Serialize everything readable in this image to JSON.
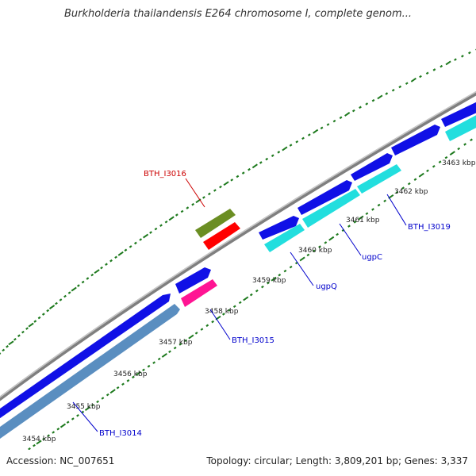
{
  "title": "Burkholderia thailandensis E264 chromosome I, complete genom...",
  "footer": {
    "accession": "Accession: NC_007651",
    "info": "Topology: circular; Length: 3,809,201 bp; Genes: 3,337"
  },
  "colors": {
    "backbone": "#888888",
    "ticks": "#1e7a1e",
    "cds_forward": "#1010e6",
    "cds_reverse_a": "#22dede",
    "cds_reverse_b": "#5a8ec0",
    "gene_olive": "#6b8e23",
    "gene_red": "#ff0000",
    "gene_magenta": "#ff1493",
    "label_blue": "#0000cc",
    "label_red": "#cc0000"
  },
  "scale": {
    "unit": "kbp",
    "ticks": [
      {
        "value": 3454,
        "label": "3454 kbp"
      },
      {
        "value": 3455,
        "label": "3455 kbp"
      },
      {
        "value": 3456,
        "label": "3456 kbp"
      },
      {
        "value": 3457,
        "label": "3457 kbp"
      },
      {
        "value": 3458,
        "label": "3458 kbp"
      },
      {
        "value": 3459,
        "label": "3459 kbp"
      },
      {
        "value": 3460,
        "label": "3460 kbp"
      },
      {
        "value": 3461,
        "label": "3461 kbp"
      },
      {
        "value": 3462,
        "label": "3462 kbp"
      },
      {
        "value": 3463,
        "label": "3463 kbp"
      }
    ]
  },
  "genes": [
    {
      "name": "BTH_I3014",
      "label_color": "blue"
    },
    {
      "name": "BTH_I3015",
      "label_color": "blue"
    },
    {
      "name": "BTH_I3016",
      "label_color": "red"
    },
    {
      "name": "ugpQ",
      "label_color": "blue"
    },
    {
      "name": "ugpC",
      "label_color": "blue"
    },
    {
      "name": "BTH_I3019",
      "label_color": "blue"
    }
  ]
}
